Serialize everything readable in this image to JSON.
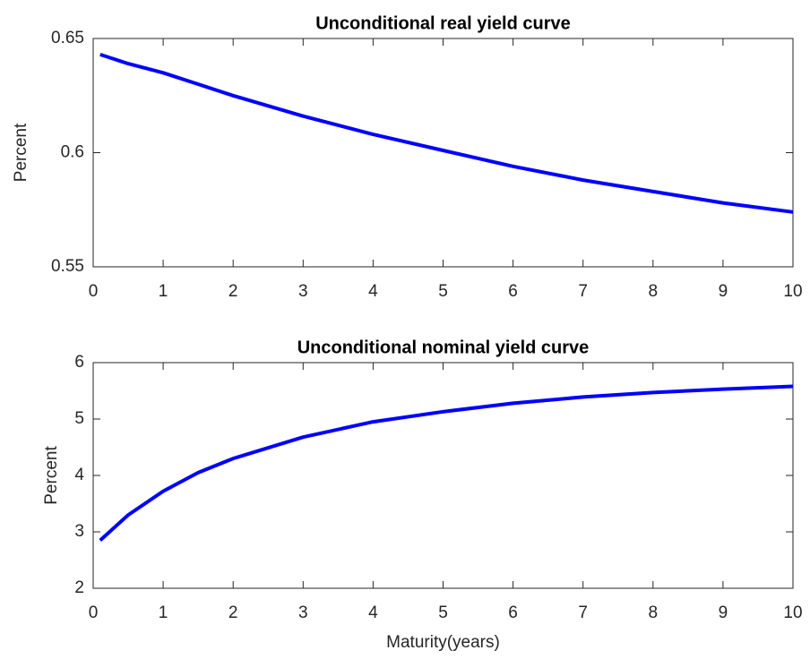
{
  "chart_data": [
    {
      "type": "line",
      "title": "Unconditional real yield curve",
      "y_label": "Percent",
      "x": [
        0.1,
        0.5,
        1,
        1.5,
        2,
        3,
        4,
        5,
        6,
        7,
        8,
        9,
        10
      ],
      "values": [
        0.643,
        0.639,
        0.635,
        0.63,
        0.625,
        0.616,
        0.608,
        0.601,
        0.594,
        0.588,
        0.583,
        0.578,
        0.574
      ],
      "color": "#0000ff",
      "xlim": [
        0,
        10
      ],
      "xticks": [
        0,
        1,
        2,
        3,
        4,
        5,
        6,
        7,
        8,
        9,
        10
      ],
      "ylim": [
        0.55,
        0.65
      ],
      "yticks": [
        0.55,
        0.6,
        0.65
      ]
    },
    {
      "type": "line",
      "title": "Unconditional nominal yield curve",
      "y_label": "Percent",
      "x_label": "Maturity(years)",
      "x": [
        0.1,
        0.5,
        1,
        1.5,
        2,
        3,
        4,
        5,
        6,
        7,
        8,
        9,
        10
      ],
      "values": [
        2.85,
        3.3,
        3.72,
        4.05,
        4.3,
        4.68,
        4.95,
        5.13,
        5.28,
        5.39,
        5.47,
        5.53,
        5.58
      ],
      "color": "#0000ff",
      "xlim": [
        0,
        10
      ],
      "xticks": [
        0,
        1,
        2,
        3,
        4,
        5,
        6,
        7,
        8,
        9,
        10
      ],
      "ylim": [
        2,
        6
      ],
      "yticks": [
        2,
        3,
        4,
        5,
        6
      ]
    }
  ]
}
